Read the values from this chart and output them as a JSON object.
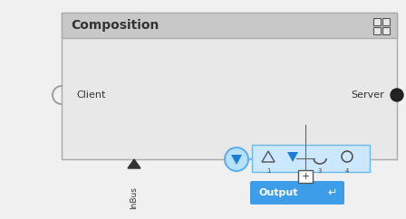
{
  "bg_color": "#f0f0f0",
  "gray_header": "#c8c8c8",
  "gray_body": "#e8e8e8",
  "blue_light": "#b8dcff",
  "blue_circle": "#7ec8f8",
  "blue_btn": "#3d9de8",
  "blue_filled_tri": "#1a7fd4",
  "dark_gray": "#333333",
  "mid_gray": "#888888",
  "composition_title": "Composition",
  "client_label": "Client",
  "server_label": "Server",
  "inbus_label": "InBus",
  "output_label": "Output",
  "fig_w": 4.48,
  "fig_h": 2.42,
  "dpi": 100
}
